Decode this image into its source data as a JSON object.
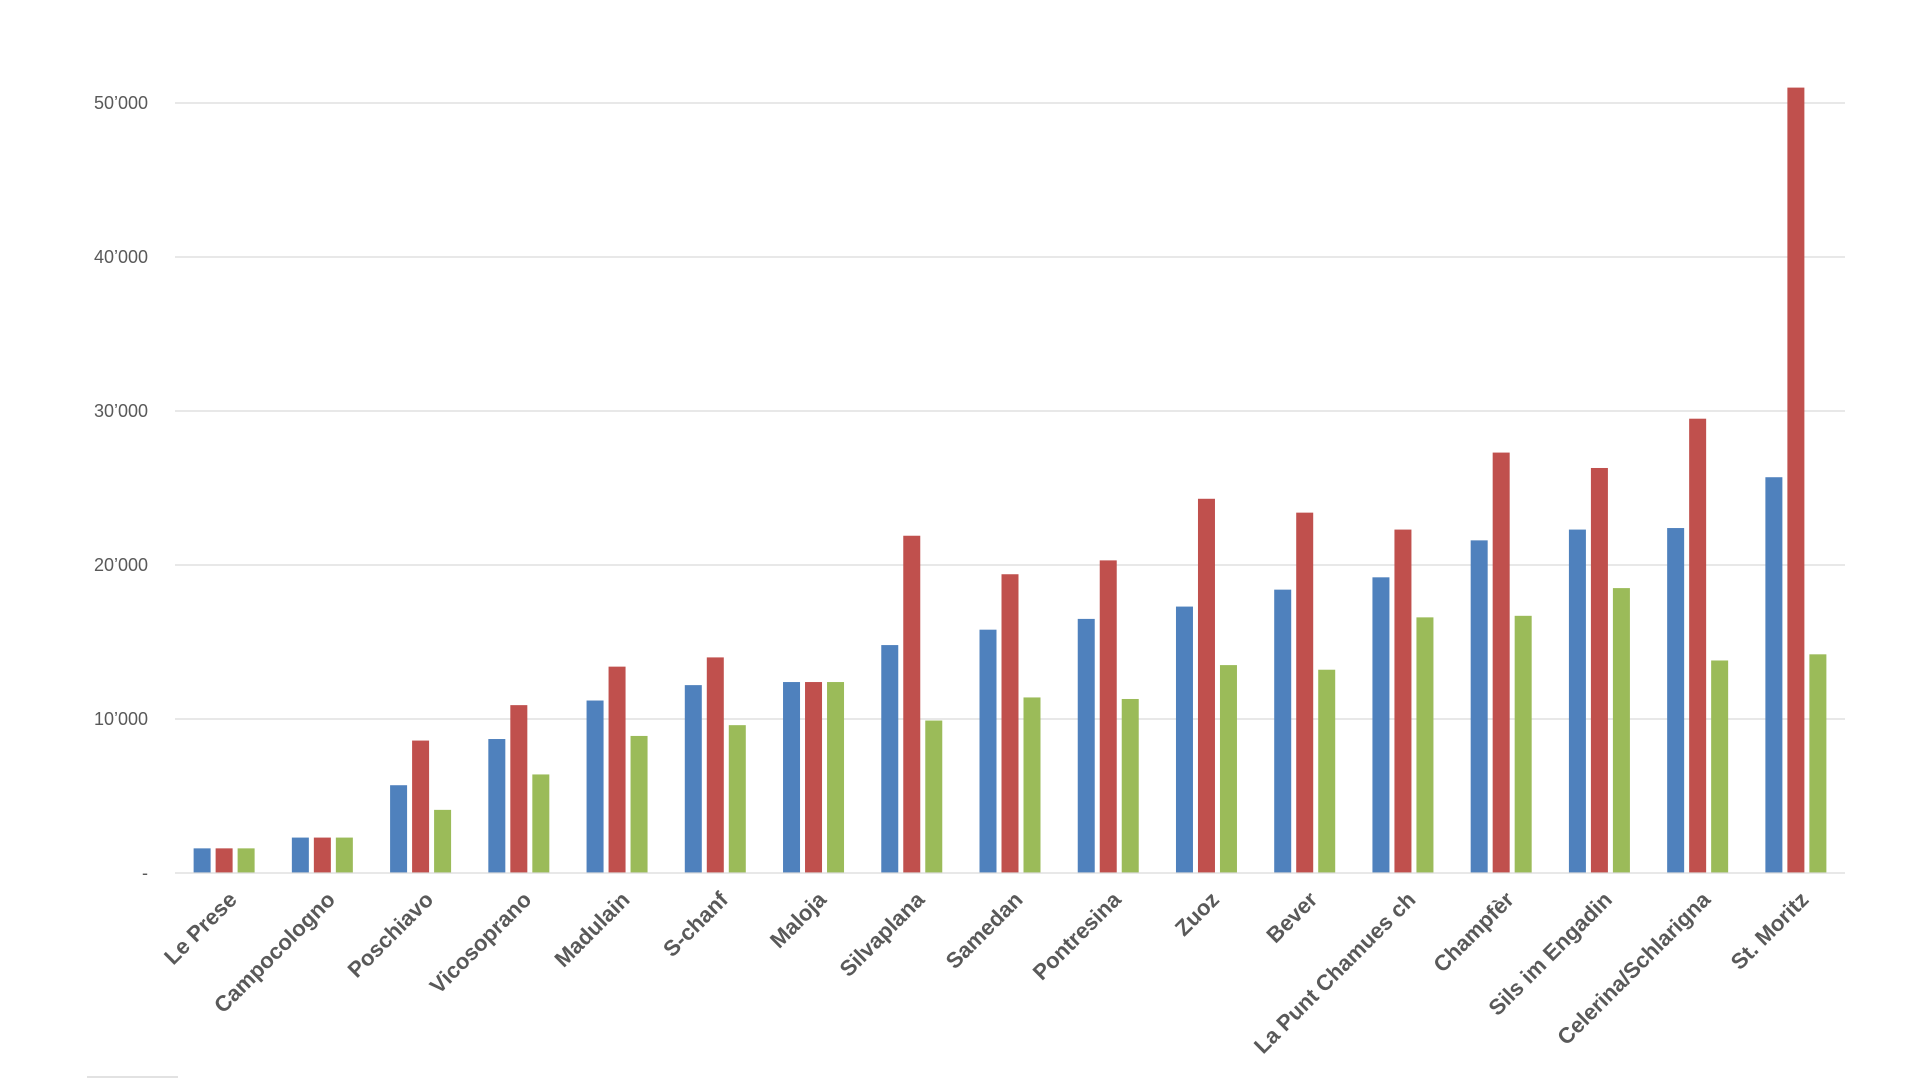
{
  "chart_data": {
    "type": "bar",
    "title": "",
    "xlabel": "",
    "ylabel": "",
    "ylim": [
      0,
      50000
    ],
    "y_ticks": [
      "-",
      "10’000",
      "20’000",
      "30’000",
      "40’000",
      "50’000"
    ],
    "y_tick_values": [
      0,
      10000,
      20000,
      30000,
      40000,
      50000
    ],
    "grid": true,
    "legend": "none",
    "colors": [
      "#4f81bd",
      "#c0504d",
      "#9bbb59"
    ],
    "categories": [
      "Le Prese",
      "Campocologno",
      "Poschiavo",
      "Vicosoprano",
      "Madulain",
      "S-chanf",
      "Maloja",
      "Silvaplana",
      "Samedan",
      "Pontresina",
      "Zuoz",
      "Bever",
      "La Punt Chamues ch",
      "Champfèr",
      "Sils im Engadin",
      "Celerina/Schlarigna",
      "St. Moritz"
    ],
    "series": [
      {
        "color": "#4f81bd",
        "values": [
          1600,
          2300,
          5700,
          8700,
          11200,
          12200,
          12400,
          14800,
          15800,
          16500,
          17300,
          18400,
          19200,
          21600,
          22300,
          22400,
          25700
        ]
      },
      {
        "color": "#c0504d",
        "values": [
          1600,
          2300,
          8600,
          10900,
          13400,
          14000,
          12400,
          21900,
          19400,
          20300,
          24300,
          23400,
          22300,
          27300,
          26300,
          29500,
          51000
        ]
      },
      {
        "color": "#9bbb59",
        "values": [
          1600,
          2300,
          4100,
          6400,
          8900,
          9600,
          12400,
          9900,
          11400,
          11300,
          13500,
          13200,
          16600,
          16700,
          18500,
          13800,
          14200
        ]
      }
    ]
  }
}
